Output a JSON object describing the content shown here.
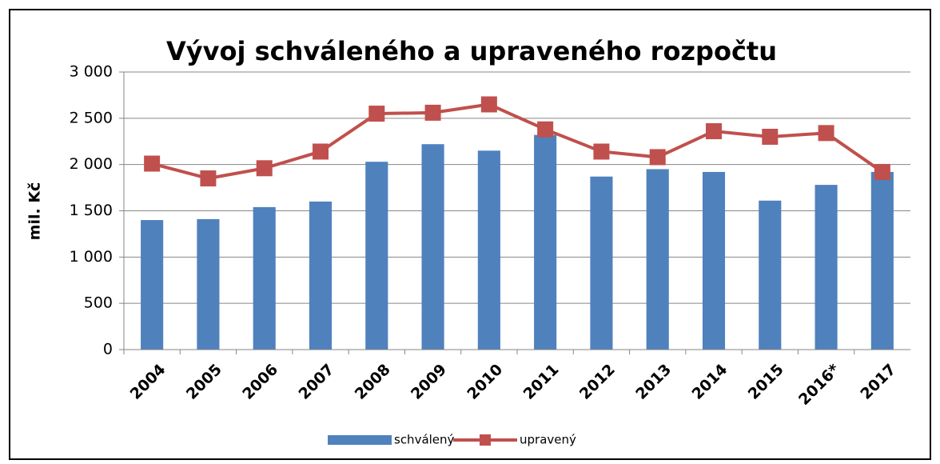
{
  "chart_data": {
    "type": "bar",
    "title": "Vývoj schváleného a upraveného rozpočtu",
    "y_label": "mil. Kč",
    "categories": [
      "2004",
      "2005",
      "2006",
      "2007",
      "2008",
      "2009",
      "2010",
      "2011",
      "2012",
      "2013",
      "2014",
      "2015",
      "2016*",
      "2017"
    ],
    "series": [
      {
        "name": "schválený",
        "type": "bar",
        "color": "#4f81bd",
        "values": [
          1400,
          1410,
          1540,
          1600,
          2030,
          2220,
          2150,
          2320,
          1870,
          1950,
          1920,
          1610,
          1780,
          1920
        ]
      },
      {
        "name": "upravený",
        "type": "line",
        "color": "#c0504d",
        "values": [
          2010,
          1850,
          1960,
          2140,
          2550,
          2560,
          2650,
          2380,
          2140,
          2080,
          2360,
          2300,
          2340,
          1920
        ]
      }
    ],
    "ylim": [
      0,
      3000
    ],
    "yticks": [
      0,
      500,
      {
        "value": 1000,
        "label": "1 000"
      },
      {
        "value": 1500,
        "label": "1 500"
      },
      {
        "value": 2000,
        "label": "2 000"
      },
      {
        "value": 2500,
        "label": "2 500"
      },
      {
        "value": 3000,
        "label": "3 000"
      }
    ],
    "grid": true,
    "legend": "bottom"
  }
}
